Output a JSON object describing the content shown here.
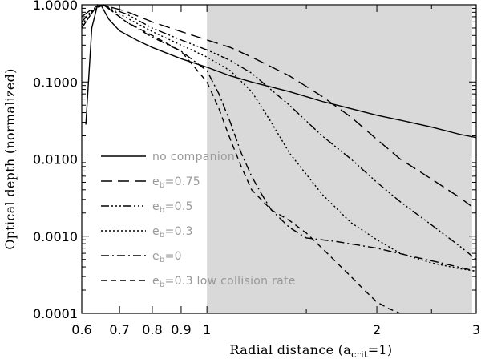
{
  "chart_data": {
    "type": "line",
    "x_scale": "log",
    "y_scale": "log",
    "xlabel": "Radial distance (a_crit=1)",
    "xlabel_parts": {
      "main": "Radial distance (a",
      "sub": "crit",
      "tail": "=1)"
    },
    "ylabel": "Optical depth (normalized)",
    "xlim": [
      0.6,
      3.0
    ],
    "ylim": [
      0.0001,
      1.0
    ],
    "x_ticks": [
      {
        "value": 0.6,
        "label": "0.6"
      },
      {
        "value": 0.7,
        "label": "0.7"
      },
      {
        "value": 0.8,
        "label": "0.8"
      },
      {
        "value": 0.9,
        "label": "0.9"
      },
      {
        "value": 1.0,
        "label": "1"
      },
      {
        "value": 2.0,
        "label": "2"
      },
      {
        "value": 3.0,
        "label": "3"
      }
    ],
    "y_ticks": [
      {
        "value": 0.0001,
        "label": "0.0001"
      },
      {
        "value": 0.001,
        "label": "0.0010"
      },
      {
        "value": 0.01,
        "label": "0.0100"
      },
      {
        "value": 0.1,
        "label": "0.1000"
      },
      {
        "value": 1.0,
        "label": "1.0000"
      }
    ],
    "shaded_region": {
      "x_from": 1.0,
      "x_to": 2.95,
      "color": "#d9d9d9"
    },
    "legend_placement": "lower-left",
    "series": [
      {
        "name": "no companion",
        "label": "no companion",
        "label_sub": null,
        "dash": "solid",
        "x": [
          0.61,
          0.625,
          0.64,
          0.65,
          0.67,
          0.7,
          0.75,
          0.8,
          0.9,
          1.0,
          1.1,
          1.2,
          1.4,
          1.6,
          1.8,
          2.0,
          2.2,
          2.5,
          2.8,
          3.0
        ],
        "y": [
          0.028,
          0.5,
          1.0,
          0.97,
          0.65,
          0.46,
          0.35,
          0.28,
          0.2,
          0.155,
          0.12,
          0.1,
          0.075,
          0.056,
          0.045,
          0.037,
          0.032,
          0.026,
          0.021,
          0.019
        ]
      },
      {
        "name": "eb=0.75",
        "label": "e",
        "label_sub": "b",
        "label_tail": "=0.75",
        "dash": "14 7",
        "x": [
          0.6,
          0.63,
          0.655,
          0.68,
          0.72,
          0.8,
          0.9,
          1.0,
          1.1,
          1.2,
          1.4,
          1.6,
          1.8,
          2.0,
          2.2,
          2.5,
          2.8,
          3.0
        ],
        "y": [
          0.7,
          0.92,
          1.0,
          0.92,
          0.82,
          0.6,
          0.45,
          0.35,
          0.28,
          0.21,
          0.12,
          0.065,
          0.035,
          0.018,
          0.01,
          0.0055,
          0.0032,
          0.0022
        ]
      },
      {
        "name": "eb=0.5",
        "label": "e",
        "label_sub": "b",
        "label_tail": "=0.5",
        "dash": "10 3 2 3 2 3 2 3",
        "x": [
          0.6,
          0.63,
          0.655,
          0.68,
          0.72,
          0.8,
          0.9,
          1.0,
          1.1,
          1.2,
          1.4,
          1.6,
          1.8,
          2.0,
          2.2,
          2.5,
          2.8,
          3.0
        ],
        "y": [
          0.6,
          0.9,
          1.0,
          0.88,
          0.76,
          0.5,
          0.35,
          0.26,
          0.19,
          0.13,
          0.05,
          0.02,
          0.01,
          0.005,
          0.0028,
          0.0014,
          0.00075,
          0.0005
        ]
      },
      {
        "name": "eb=0.3",
        "label": "e",
        "label_sub": "b",
        "label_tail": "=0.3",
        "dash": "2 3",
        "x": [
          0.6,
          0.63,
          0.655,
          0.68,
          0.72,
          0.8,
          0.9,
          1.0,
          1.1,
          1.2,
          1.3,
          1.4,
          1.6,
          1.8,
          2.0,
          2.2,
          2.5,
          2.8,
          3.0
        ],
        "y": [
          0.55,
          0.88,
          1.0,
          0.85,
          0.68,
          0.45,
          0.3,
          0.21,
          0.14,
          0.075,
          0.03,
          0.012,
          0.0035,
          0.0015,
          0.0009,
          0.0006,
          0.00045,
          0.00038,
          0.00035
        ]
      },
      {
        "name": "eb=0",
        "label": "e",
        "label_sub": "b",
        "label_tail": "=0",
        "dash": "10 4 2 4",
        "x": [
          0.6,
          0.63,
          0.655,
          0.68,
          0.72,
          0.8,
          0.9,
          1.0,
          1.05,
          1.1,
          1.15,
          1.2,
          1.25,
          1.3,
          1.4,
          1.5,
          1.7,
          2.0,
          2.3,
          2.6,
          3.0
        ],
        "y": [
          0.5,
          0.85,
          1.0,
          0.82,
          0.6,
          0.38,
          0.25,
          0.14,
          0.07,
          0.03,
          0.012,
          0.006,
          0.0035,
          0.0022,
          0.0013,
          0.00095,
          0.00085,
          0.0007,
          0.00055,
          0.00045,
          0.00035
        ]
      },
      {
        "name": "eb=0.3 low collision rate",
        "label": "e",
        "label_sub": "b",
        "label_tail": "=0.3 low collision rate",
        "dash": "7 5",
        "x": [
          0.6,
          0.63,
          0.655,
          0.68,
          0.72,
          0.8,
          0.9,
          1.0,
          1.05,
          1.1,
          1.15,
          1.2,
          1.3,
          1.4,
          1.5,
          1.6,
          1.7,
          1.8,
          1.9,
          2.0,
          2.1,
          2.2
        ],
        "y": [
          0.5,
          0.85,
          1.0,
          0.82,
          0.6,
          0.4,
          0.25,
          0.1,
          0.045,
          0.018,
          0.008,
          0.004,
          0.0022,
          0.0016,
          0.0011,
          0.0007,
          0.00045,
          0.0003,
          0.0002,
          0.00014,
          0.000115,
          0.0001
        ]
      }
    ]
  }
}
